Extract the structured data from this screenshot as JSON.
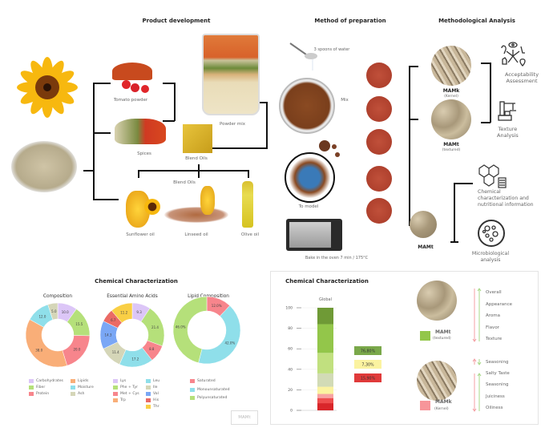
{
  "product_development": {
    "title": "Product development",
    "tomato": "Tomato powder",
    "spices": "Spices",
    "blend_oils_packet": "Blend Oils",
    "powder_mix": "Powder mix",
    "blend_oils": "Blend Oils",
    "oils": [
      "Sunflower oil",
      "Linseed oil",
      "Olive oil"
    ]
  },
  "method": {
    "title": "Method of preparation",
    "water": "3 spoons of water",
    "mix": "Mix",
    "model": "To model",
    "bake": "Bake in the oven  7 min / 175°C"
  },
  "analysis": {
    "title": "Methodological Analysis",
    "mamk": "MAMk",
    "mamk_sub": "(Kernel)",
    "mamt": "MAMt",
    "mamt_sub": "(textured)",
    "mamt_small": "MAMt",
    "acceptability": [
      "Acceptability",
      "Assessment"
    ],
    "texture": [
      "Texture",
      "Analysis"
    ],
    "chemical": [
      "Chemical",
      "characterization and",
      "nutritional information"
    ],
    "micro": [
      "Microbiological",
      "analysis"
    ]
  },
  "chem_left": {
    "title": "Chemical Characterization",
    "watermark": "MAMt"
  },
  "chart_data": [
    {
      "type": "pie",
      "title": "Composition",
      "donut": true,
      "labels": [
        "Carbohydrates",
        "Fiber",
        "Protein",
        "Lipids",
        "Moisture",
        "Ash"
      ],
      "values": [
        10.0,
        15.5,
        20.0,
        38.0,
        12.0,
        5.0
      ],
      "colors": [
        "#dcc6f7",
        "#b5e07a",
        "#f7858c",
        "#f9ae78",
        "#8fdfea",
        "#d5d6b8"
      ]
    },
    {
      "type": "pie",
      "title": "Essential Amino Acids",
      "donut": true,
      "labels": [
        "Lys",
        "Phe + Tyr",
        "Met + Cys",
        "Trp",
        "Leu",
        "Ile",
        "Val",
        "His",
        "Thr"
      ],
      "legend_order": [
        "Lys",
        "Phe + Tyr",
        "Met + Cys",
        "Trp",
        "Leu",
        "Ile",
        "Val",
        "His",
        "Thr"
      ],
      "segments": [
        {
          "label": "Lys",
          "value": 9.3,
          "color": "#dcc6f7"
        },
        {
          "label": "Phe + Tyr",
          "value": 21.4,
          "color": "#b5e07a"
        },
        {
          "label": "Met + Cys",
          "value": 8.8,
          "color": "#f7858c"
        },
        {
          "label": "Leu",
          "value": 17.2,
          "color": "#8fdfea"
        },
        {
          "label": "Ile",
          "value": 11.4,
          "color": "#d5d6b8"
        },
        {
          "label": "Val",
          "value": 14.3,
          "color": "#7aa7f5"
        },
        {
          "label": "His",
          "value": 6.7,
          "color": "#ea6a65"
        },
        {
          "label": "Thr",
          "value": 11.2,
          "color": "#f9cf45"
        }
      ],
      "legend_colors": {
        "Lys": "#dcc6f7",
        "Phe + Tyr": "#b5e07a",
        "Met + Cys": "#f7858c",
        "Trp": "#f9ae78",
        "Leu": "#8fdfea",
        "Ile": "#d5d6b8",
        "Val": "#7aa7f5",
        "His": "#ea6a65",
        "Thr": "#f9cf45"
      }
    },
    {
      "type": "pie",
      "title": "Lipid Composition",
      "donut": true,
      "labels": [
        "Saturated",
        "Monounsaturated",
        "Polyunsaturated"
      ],
      "values": [
        12.0,
        42.0,
        46.0
      ],
      "value_labels": [
        "12.0%",
        "42.0%",
        "46.0%"
      ],
      "colors": [
        "#f7858c",
        "#8fdfea",
        "#b5e07a"
      ]
    },
    {
      "type": "bar",
      "stacked": true,
      "title": "Chemical Characterization",
      "categories": [
        "Global"
      ],
      "ylim": [
        0,
        100
      ],
      "yticks": [
        0,
        20,
        40,
        60,
        80,
        100
      ],
      "segments": [
        {
          "from": 0,
          "to": 7,
          "color": "#d9262a"
        },
        {
          "from": 7,
          "to": 12,
          "color": "#ee4e4e"
        },
        {
          "from": 12,
          "to": 16,
          "color": "#f7a3a3"
        },
        {
          "from": 16,
          "to": 23,
          "color": "#fbf3a0"
        },
        {
          "from": 23,
          "to": 36,
          "color": "#d2dbb6"
        },
        {
          "from": 36,
          "to": 56,
          "color": "#c1e07f"
        },
        {
          "from": 56,
          "to": 84,
          "color": "#93c64a"
        },
        {
          "from": 84,
          "to": 100,
          "color": "#6f9a36"
        }
      ],
      "legend": [
        {
          "label": "76,80%",
          "color": "#7aa84a"
        },
        {
          "label": "7,30%",
          "color": "#fbf3a0"
        },
        {
          "label": "15,90%",
          "color": "#e03a3a"
        }
      ]
    }
  ],
  "sensory": {
    "mamt": "MAMt",
    "mamt_sub": "(textured)",
    "mamt_color": "#93c64a",
    "mamt_attrs": [
      "Overall",
      "Appearance",
      "Aroma",
      "Flavor",
      "Texture"
    ],
    "mamk": "MAMk",
    "mamk_sub": "(Kernel)",
    "mamk_color": "#f7959a",
    "mamk_single": "Seasoning",
    "mamk_attrs": [
      "Salty Taste",
      "Seasoning",
      "Juiciness",
      "Oiliness"
    ]
  }
}
